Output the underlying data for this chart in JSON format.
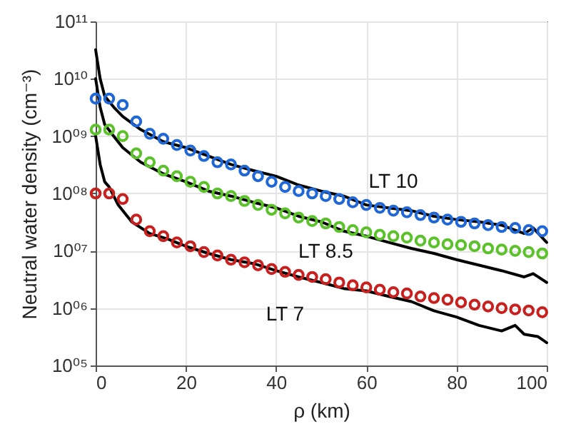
{
  "chart_data": {
    "type": "scatter",
    "xlabel": "ρ (km)",
    "ylabel": "Neutral water density (cm⁻³)",
    "log": "y",
    "grid": true,
    "marker": "circle",
    "xlim": [
      0,
      100
    ],
    "xticks": [
      0,
      20,
      40,
      60,
      80,
      100
    ],
    "ylim": [
      100000,
      100000000000
    ],
    "yticks": [
      {
        "value": 100000,
        "label": "10⁰⁵"
      },
      {
        "value": 1000000,
        "label": "10⁰⁶"
      },
      {
        "value": 10000000,
        "label": "10⁰⁷"
      },
      {
        "value": 100000000,
        "label": "10⁰⁸"
      },
      {
        "value": 1000000000,
        "label": "10⁰⁹"
      },
      {
        "value": 10000000000,
        "label": "10¹⁰"
      },
      {
        "value": 100000000000,
        "label": "10¹¹"
      }
    ],
    "series": [
      {
        "type": "line",
        "color": "#000000",
        "marker": "none",
        "x": [
          0,
          1,
          2,
          4,
          6,
          10,
          15,
          20,
          25,
          30,
          35,
          40,
          45,
          50,
          55,
          60,
          65,
          70,
          75,
          80,
          85,
          90,
          95,
          97,
          100
        ],
        "values": [
          32000000000.0,
          10000000000.0,
          5000000000.0,
          3200000000.0,
          2200000000.0,
          1300000000.0,
          800000000.0,
          630000000.0,
          450000000.0,
          320000000.0,
          250000000.0,
          200000000.0,
          140000000.0,
          110000000.0,
          90000000.0,
          63000000.0,
          56000000.0,
          50000000.0,
          40000000.0,
          35000000.0,
          32000000.0,
          28000000.0,
          20000000.0,
          25000000.0,
          14000000.0
        ]
      },
      {
        "type": "line",
        "color": "#000000",
        "marker": "none",
        "x": [
          0,
          1,
          2,
          4,
          6,
          10,
          15,
          20,
          25,
          30,
          35,
          40,
          45,
          50,
          55,
          60,
          65,
          70,
          75,
          80,
          85,
          90,
          95,
          97,
          100
        ],
        "values": [
          10000000000.0,
          3200000000.0,
          1600000000.0,
          1000000000.0,
          630000000.0,
          350000000.0,
          220000000.0,
          160000000.0,
          110000000.0,
          90000000.0,
          70000000.0,
          56000000.0,
          40000000.0,
          32000000.0,
          22000000.0,
          18000000.0,
          14000000.0,
          11000000.0,
          9000000.0,
          7000000.0,
          5600000.0,
          4500000.0,
          3500000.0,
          4000000.0,
          2800000.0
        ]
      },
      {
        "type": "line",
        "color": "#000000",
        "marker": "none",
        "x": [
          0,
          1,
          2,
          3,
          5,
          8,
          12,
          16,
          20,
          25,
          30,
          35,
          40,
          45,
          50,
          55,
          60,
          65,
          70,
          75,
          80,
          85,
          90,
          93,
          95,
          98,
          100
        ],
        "values": [
          1000000000.0,
          320000000.0,
          160000000.0,
          130000000.0,
          63000000.0,
          32000000.0,
          20000000.0,
          16000000.0,
          12000000.0,
          9000000.0,
          7000000.0,
          6000000.0,
          4500000.0,
          3500000.0,
          2800000.0,
          2200000.0,
          2000000.0,
          1600000.0,
          1300000.0,
          900000.0,
          700000.0,
          500000.0,
          400000.0,
          500000.0,
          350000.0,
          320000.0,
          250000.0
        ]
      },
      {
        "name": "LT 10",
        "color": "#1f66d6",
        "x": [
          0,
          3,
          6,
          9,
          12,
          15,
          18,
          21,
          24,
          27,
          30,
          33,
          36,
          39,
          42,
          45,
          48,
          51,
          54,
          57,
          60,
          63,
          66,
          69,
          72,
          75,
          78,
          81,
          84,
          87,
          90,
          93,
          96,
          99
        ],
        "values": [
          4500000000.0,
          4500000000.0,
          3500000000.0,
          1800000000.0,
          1100000000.0,
          900000000.0,
          700000000.0,
          560000000.0,
          450000000.0,
          350000000.0,
          320000000.0,
          250000000.0,
          200000000.0,
          160000000.0,
          130000000.0,
          110000000.0,
          100000000.0,
          90000000.0,
          80000000.0,
          70000000.0,
          63000000.0,
          56000000.0,
          50000000.0,
          47000000.0,
          42000000.0,
          38000000.0,
          35000000.0,
          32000000.0,
          30000000.0,
          28000000.0,
          26000000.0,
          25000000.0,
          23000000.0,
          22000000.0
        ]
      },
      {
        "name": "LT 8.5",
        "color": "#5cc22b",
        "x": [
          0,
          3,
          6,
          9,
          12,
          15,
          18,
          21,
          24,
          27,
          30,
          33,
          36,
          39,
          42,
          45,
          48,
          51,
          54,
          57,
          60,
          63,
          66,
          69,
          72,
          75,
          78,
          81,
          84,
          87,
          90,
          93,
          96,
          99
        ],
        "values": [
          1300000000.0,
          1300000000.0,
          1000000000.0,
          500000000.0,
          350000000.0,
          250000000.0,
          200000000.0,
          160000000.0,
          130000000.0,
          100000000.0,
          90000000.0,
          74000000.0,
          63000000.0,
          52000000.0,
          45000000.0,
          38000000.0,
          33000000.0,
          30000000.0,
          26000000.0,
          23000000.0,
          21000000.0,
          19000000.0,
          18000000.0,
          17000000.0,
          15000000.0,
          14000000.0,
          13000000.0,
          12600000.0,
          12000000.0,
          11000000.0,
          10500000.0,
          10000000.0,
          9500000.0,
          9000000.0
        ]
      },
      {
        "name": "LT 7",
        "color": "#c8201e",
        "x": [
          0,
          3,
          6,
          9,
          12,
          15,
          18,
          21,
          24,
          27,
          30,
          33,
          36,
          39,
          42,
          45,
          48,
          51,
          54,
          57,
          60,
          63,
          66,
          69,
          72,
          75,
          78,
          81,
          84,
          87,
          90,
          93,
          96,
          99
        ],
        "values": [
          100000000.0,
          100000000.0,
          80000000.0,
          35000000.0,
          22000000.0,
          18000000.0,
          14000000.0,
          12000000.0,
          9500000.0,
          8300000.0,
          7000000.0,
          6300000.0,
          5600000.0,
          4800000.0,
          4300000.0,
          3800000.0,
          3500000.0,
          3200000.0,
          2800000.0,
          2500000.0,
          2300000.0,
          2100000.0,
          1900000.0,
          1800000.0,
          1600000.0,
          1500000.0,
          1400000.0,
          1260000.0,
          1150000.0,
          1070000.0,
          1000000.0,
          950000.0,
          910000.0,
          850000.0
        ]
      }
    ]
  }
}
